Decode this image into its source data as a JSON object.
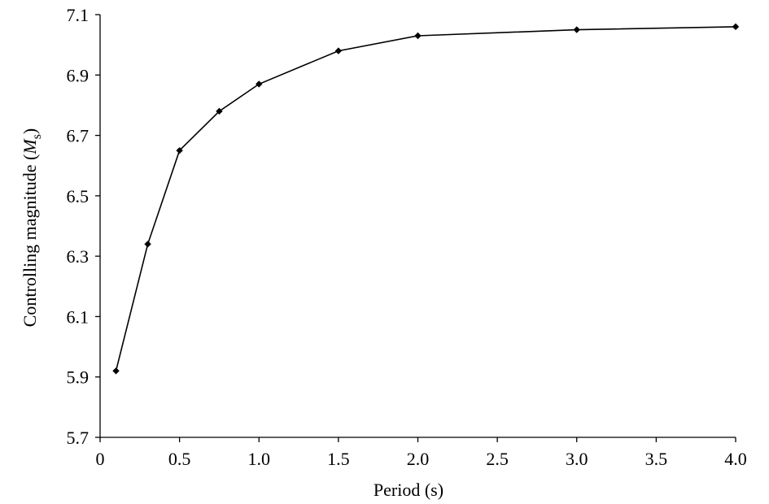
{
  "chart_data": {
    "type": "line",
    "xlabel": "Period (s)",
    "ylabel_main": "Controlling magnitude (",
    "ylabel_symbol": "M",
    "ylabel_subscript": "s",
    "ylabel_close": ")",
    "xlim": [
      0,
      4.0
    ],
    "ylim": [
      5.7,
      7.1
    ],
    "x_ticks": [
      0,
      0.5,
      1.0,
      1.5,
      2.0,
      2.5,
      3.0,
      3.5,
      4.0
    ],
    "x_tick_labels": [
      "0",
      "0.5",
      "1.0",
      "1.5",
      "2.0",
      "2.5",
      "3.0",
      "3.5",
      "4.0"
    ],
    "y_ticks": [
      5.7,
      5.9,
      6.1,
      6.3,
      6.5,
      6.7,
      6.9,
      7.1
    ],
    "y_tick_labels": [
      "5.7",
      "5.9",
      "6.1",
      "6.3",
      "6.5",
      "6.7",
      "6.9",
      "7.1"
    ],
    "grid": false,
    "series": [
      {
        "x": [
          0.1,
          0.3,
          0.5,
          0.75,
          1.0,
          1.5,
          2.0,
          3.0,
          4.0
        ],
        "y": [
          5.92,
          6.34,
          6.65,
          6.78,
          6.87,
          6.98,
          7.03,
          7.05,
          7.06
        ]
      }
    ],
    "colors": {
      "line": "#000000",
      "marker": "#000000",
      "axis": "#000000"
    }
  }
}
